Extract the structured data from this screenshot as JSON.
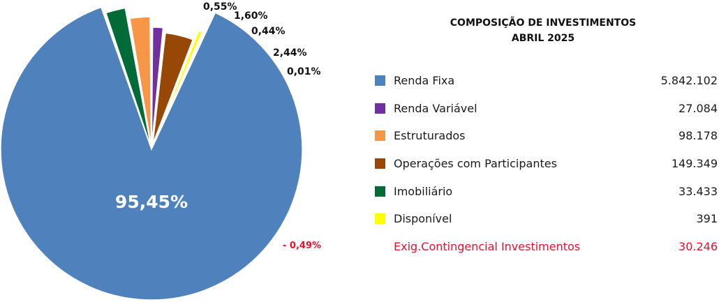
{
  "chart_data": {
    "type": "pie",
    "title": "COMPOSIÇÃO DE INVESTIMENTOS",
    "subtitle": "ABRIL 2025",
    "slices": [
      {
        "name": "Renda Fixa",
        "percent_label": "95,45%",
        "value": 5842102,
        "value_label": "5.842.102",
        "color": "#4f81bd"
      },
      {
        "name": "Imobiliário",
        "percent_label": "0,55%",
        "value": 33433,
        "value_label": "33.433",
        "color": "#006b36"
      },
      {
        "name": "Estruturados",
        "percent_label": "1,60%",
        "value": 98178,
        "value_label": "98.178",
        "color": "#f79646"
      },
      {
        "name": "Renda Variável",
        "percent_label": "0,44%",
        "value": 27084,
        "value_label": "27.084",
        "color": "#7030a0"
      },
      {
        "name": "Operações com Participantes",
        "percent_label": "2,44%",
        "value": 149349,
        "value_label": "149.349",
        "color": "#974706"
      },
      {
        "name": "Disponível",
        "percent_label": "0,01%",
        "value": 391,
        "value_label": "391",
        "color": "#ffff00"
      }
    ],
    "negative": {
      "name": "Exig.Contingencial Investimentos",
      "percent_label": "- 0,49%",
      "value": 30246,
      "value_label": "30.246",
      "color": "#e8102a"
    },
    "legend": {
      "placement": "right",
      "order": [
        "Renda Fixa",
        "Renda Variável",
        "Estruturados",
        "Operações com Participantes",
        "Imobiliário",
        "Disponível"
      ]
    }
  }
}
